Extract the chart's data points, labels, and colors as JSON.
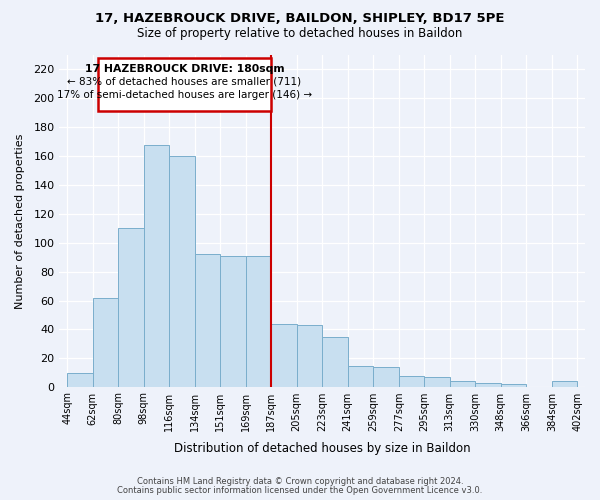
{
  "title1": "17, HAZEBROUCK DRIVE, BAILDON, SHIPLEY, BD17 5PE",
  "title2": "Size of property relative to detached houses in Baildon",
  "xlabel": "Distribution of detached houses by size in Baildon",
  "ylabel": "Number of detached properties",
  "bar_labels": [
    "44sqm",
    "62sqm",
    "80sqm",
    "98sqm",
    "116sqm",
    "134sqm",
    "151sqm",
    "169sqm",
    "187sqm",
    "205sqm",
    "223sqm",
    "241sqm",
    "259sqm",
    "277sqm",
    "295sqm",
    "313sqm",
    "330sqm",
    "348sqm",
    "366sqm",
    "384sqm",
    "402sqm"
  ],
  "bar_values": [
    10,
    62,
    110,
    168,
    160,
    92,
    91,
    91,
    44,
    43,
    35,
    15,
    14,
    8,
    7,
    4,
    3,
    2,
    0,
    4
  ],
  "bar_color": "#c8dff0",
  "bar_edge_color": "#7aaecc",
  "vline_color": "#cc0000",
  "annotation_title": "17 HAZEBROUCK DRIVE: 180sqm",
  "annotation_line1": "← 83% of detached houses are smaller (711)",
  "annotation_line2": "17% of semi-detached houses are larger (146) →",
  "annotation_box_color": "#ffffff",
  "annotation_box_edge": "#cc0000",
  "footer1": "Contains HM Land Registry data © Crown copyright and database right 2024.",
  "footer2": "Contains public sector information licensed under the Open Government Licence v3.0.",
  "ylim": [
    0,
    230
  ],
  "yticks": [
    0,
    20,
    40,
    60,
    80,
    100,
    120,
    140,
    160,
    180,
    200,
    220
  ],
  "background_color": "#eef2fa",
  "grid_color": "#ffffff"
}
